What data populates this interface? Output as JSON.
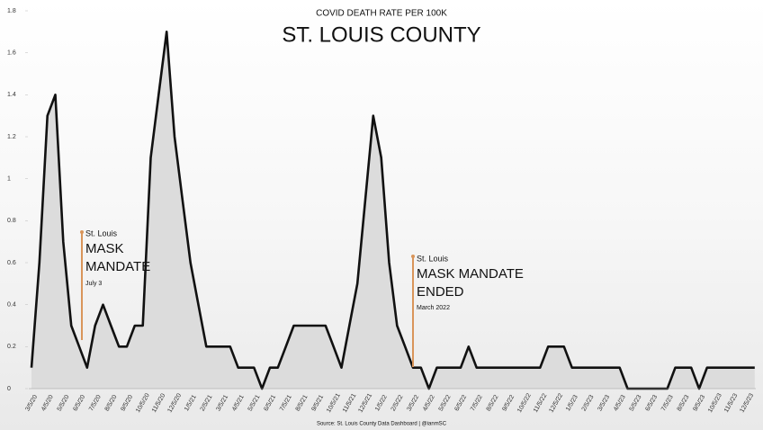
{
  "chart_data": {
    "type": "line",
    "title": "COVID DEATH RATE PER 100K",
    "subtitle": "ST. LOUIS COUNTY",
    "source": "Source: St. Louis County Data Dashboard | @ianmSC",
    "categories": [
      "3/5/20",
      null,
      "4/5/20",
      null,
      "5/5/20",
      null,
      "6/5/20",
      null,
      "7/5/20",
      null,
      "8/5/20",
      null,
      "9/5/20",
      null,
      "10/5/20",
      null,
      "11/5/20",
      null,
      "12/5/20",
      null,
      "1/5/21",
      null,
      "2/5/21",
      null,
      "3/5/21",
      null,
      "4/5/21",
      null,
      "5/5/21",
      null,
      "6/5/21",
      null,
      "7/5/21",
      null,
      "8/5/21",
      null,
      "9/5/21",
      null,
      "10/5/21",
      null,
      "11/5/21",
      null,
      "12/5/21",
      null,
      "1/5/22",
      null,
      "2/5/22",
      null,
      "3/5/22",
      null,
      "4/5/22",
      null,
      "5/5/22",
      null,
      "6/5/22",
      null,
      "7/5/22",
      null,
      "8/5/22",
      null,
      "9/5/22",
      null,
      "10/5/22",
      null,
      "11/5/22",
      null,
      "12/5/22",
      null,
      "1/5/23",
      null,
      "2/5/23",
      null,
      "3/5/23",
      null,
      "4/5/23",
      null,
      "5/5/23",
      null,
      "6/5/23",
      null,
      "7/5/23",
      null,
      "8/5/23",
      null,
      "9/5/23",
      null,
      "10/5/23",
      null,
      "11/5/23",
      null,
      "12/5/23",
      null
    ],
    "values": [
      0.1,
      0.6,
      1.3,
      1.4,
      0.7,
      0.3,
      0.2,
      0.1,
      0.3,
      0.4,
      0.3,
      0.2,
      0.2,
      0.3,
      0.3,
      1.1,
      1.4,
      1.7,
      1.2,
      0.9,
      0.6,
      0.4,
      0.2,
      0.2,
      0.2,
      0.2,
      0.1,
      0.1,
      0.1,
      0,
      0.1,
      0.1,
      0.2,
      0.3,
      0.3,
      0.3,
      0.3,
      0.3,
      0.2,
      0.1,
      0.3,
      0.5,
      0.9,
      1.3,
      1.1,
      0.6,
      0.3,
      0.2,
      0.1,
      0.1,
      0,
      0.1,
      0.1,
      0.1,
      0.1,
      0.2,
      0.1,
      0.1,
      0.1,
      0.1,
      0.1,
      0.1,
      0.1,
      0.1,
      0.1,
      0.2,
      0.2,
      0.2,
      0.1,
      0.1,
      0.1,
      0.1,
      0.1,
      0.1,
      0.1,
      0,
      0,
      0,
      0,
      0,
      0,
      0.1,
      0.1,
      0.1,
      0,
      0.1,
      0.1,
      0.1,
      0.1,
      0.1,
      0.1,
      0.1
    ],
    "color": "#111111",
    "fill": "#dcdcdc",
    "ylim": [
      0,
      1.8
    ],
    "yticks": [
      0,
      0.2,
      0.4,
      0.6,
      0.8,
      1,
      1.2,
      1.4,
      1.6,
      1.8
    ],
    "annotations": [
      {
        "lines": [
          "St. Louis",
          "MASK",
          "MANDATE",
          "July 3"
        ],
        "color": "#d9955a"
      },
      {
        "lines": [
          "St. Louis",
          "MASK MANDATE",
          "ENDED",
          "March 2022"
        ],
        "color": "#d9955a"
      }
    ]
  }
}
